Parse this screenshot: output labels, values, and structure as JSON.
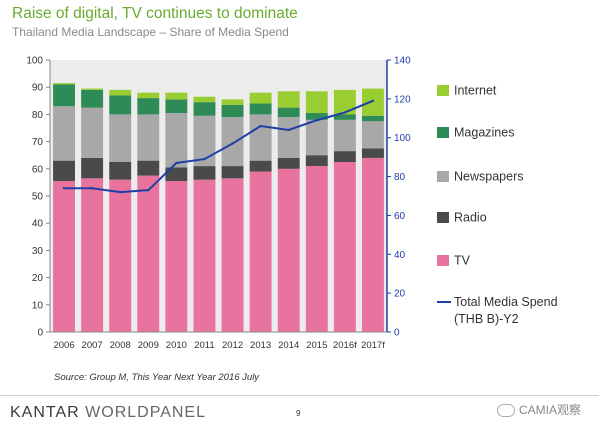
{
  "header": {
    "title": "Raise of digital, TV continues to dominate",
    "subtitle": "Thailand Media Landscape – Share of Media Spend"
  },
  "footer": {
    "source": "Source: Group M, This Year Next Year 2016 July",
    "brand_part1": "KANTAR ",
    "brand_part2": "WORLDPANEL",
    "page_number": "9",
    "watermark": "CAMIA观察"
  },
  "colors": {
    "tv": "#e8739e",
    "radio": "#4a4a4a",
    "newspapers": "#a8a8a8",
    "magazines": "#2e8b57",
    "internet": "#9acd32",
    "total_line": "#1f3fa6",
    "plot_bg": "#ececec"
  },
  "chart_data": {
    "type": "bar",
    "stacked": true,
    "categories": [
      "2006",
      "2007",
      "2008",
      "2009",
      "2010",
      "2011",
      "2012",
      "2013",
      "2014",
      "2015",
      "2016f",
      "2017f"
    ],
    "series": [
      {
        "name": "TV",
        "values": [
          55.5,
          56.5,
          56,
          57.5,
          55.5,
          56,
          56.5,
          59,
          60,
          61,
          62.5,
          64
        ]
      },
      {
        "name": "Radio",
        "values": [
          7.5,
          7.5,
          6.5,
          5.5,
          5,
          5,
          4.5,
          4,
          4,
          4,
          4,
          3.5
        ]
      },
      {
        "name": "Newspapers",
        "values": [
          20,
          18.5,
          17.5,
          17,
          20,
          18.5,
          18,
          17,
          15,
          13,
          11.5,
          10
        ]
      },
      {
        "name": "Magazines",
        "values": [
          8,
          6.5,
          7,
          6,
          5,
          5,
          4.5,
          4,
          3.5,
          2.5,
          2,
          2
        ]
      },
      {
        "name": "Internet",
        "values": [
          0.5,
          0.5,
          2,
          2,
          2.5,
          2,
          2,
          4,
          6,
          8,
          9,
          10
        ]
      }
    ],
    "line_series": {
      "name": "Total Media Spend (THB B)-Y2",
      "legend_line1": "Total Media Spend",
      "legend_line2": "(THB B)-Y2",
      "values": [
        74,
        74,
        72,
        73,
        87,
        89,
        97,
        106,
        104,
        109,
        113,
        119
      ],
      "axis": "right"
    },
    "legend_order": [
      "Internet",
      "Magazines",
      "Newspapers",
      "Radio",
      "TV",
      "Total Media Spend (THB B)-Y2"
    ],
    "y_left": {
      "min": 0,
      "max": 100,
      "step": 10,
      "ticks": [
        "0",
        "10",
        "20",
        "30",
        "40",
        "50",
        "60",
        "70",
        "80",
        "90",
        "100"
      ]
    },
    "y_right": {
      "min": 0,
      "max": 140,
      "step": 20,
      "ticks": [
        "0",
        "20",
        "40",
        "60",
        "80",
        "100",
        "120",
        "140"
      ]
    },
    "grid": false,
    "legend_position": "right"
  }
}
